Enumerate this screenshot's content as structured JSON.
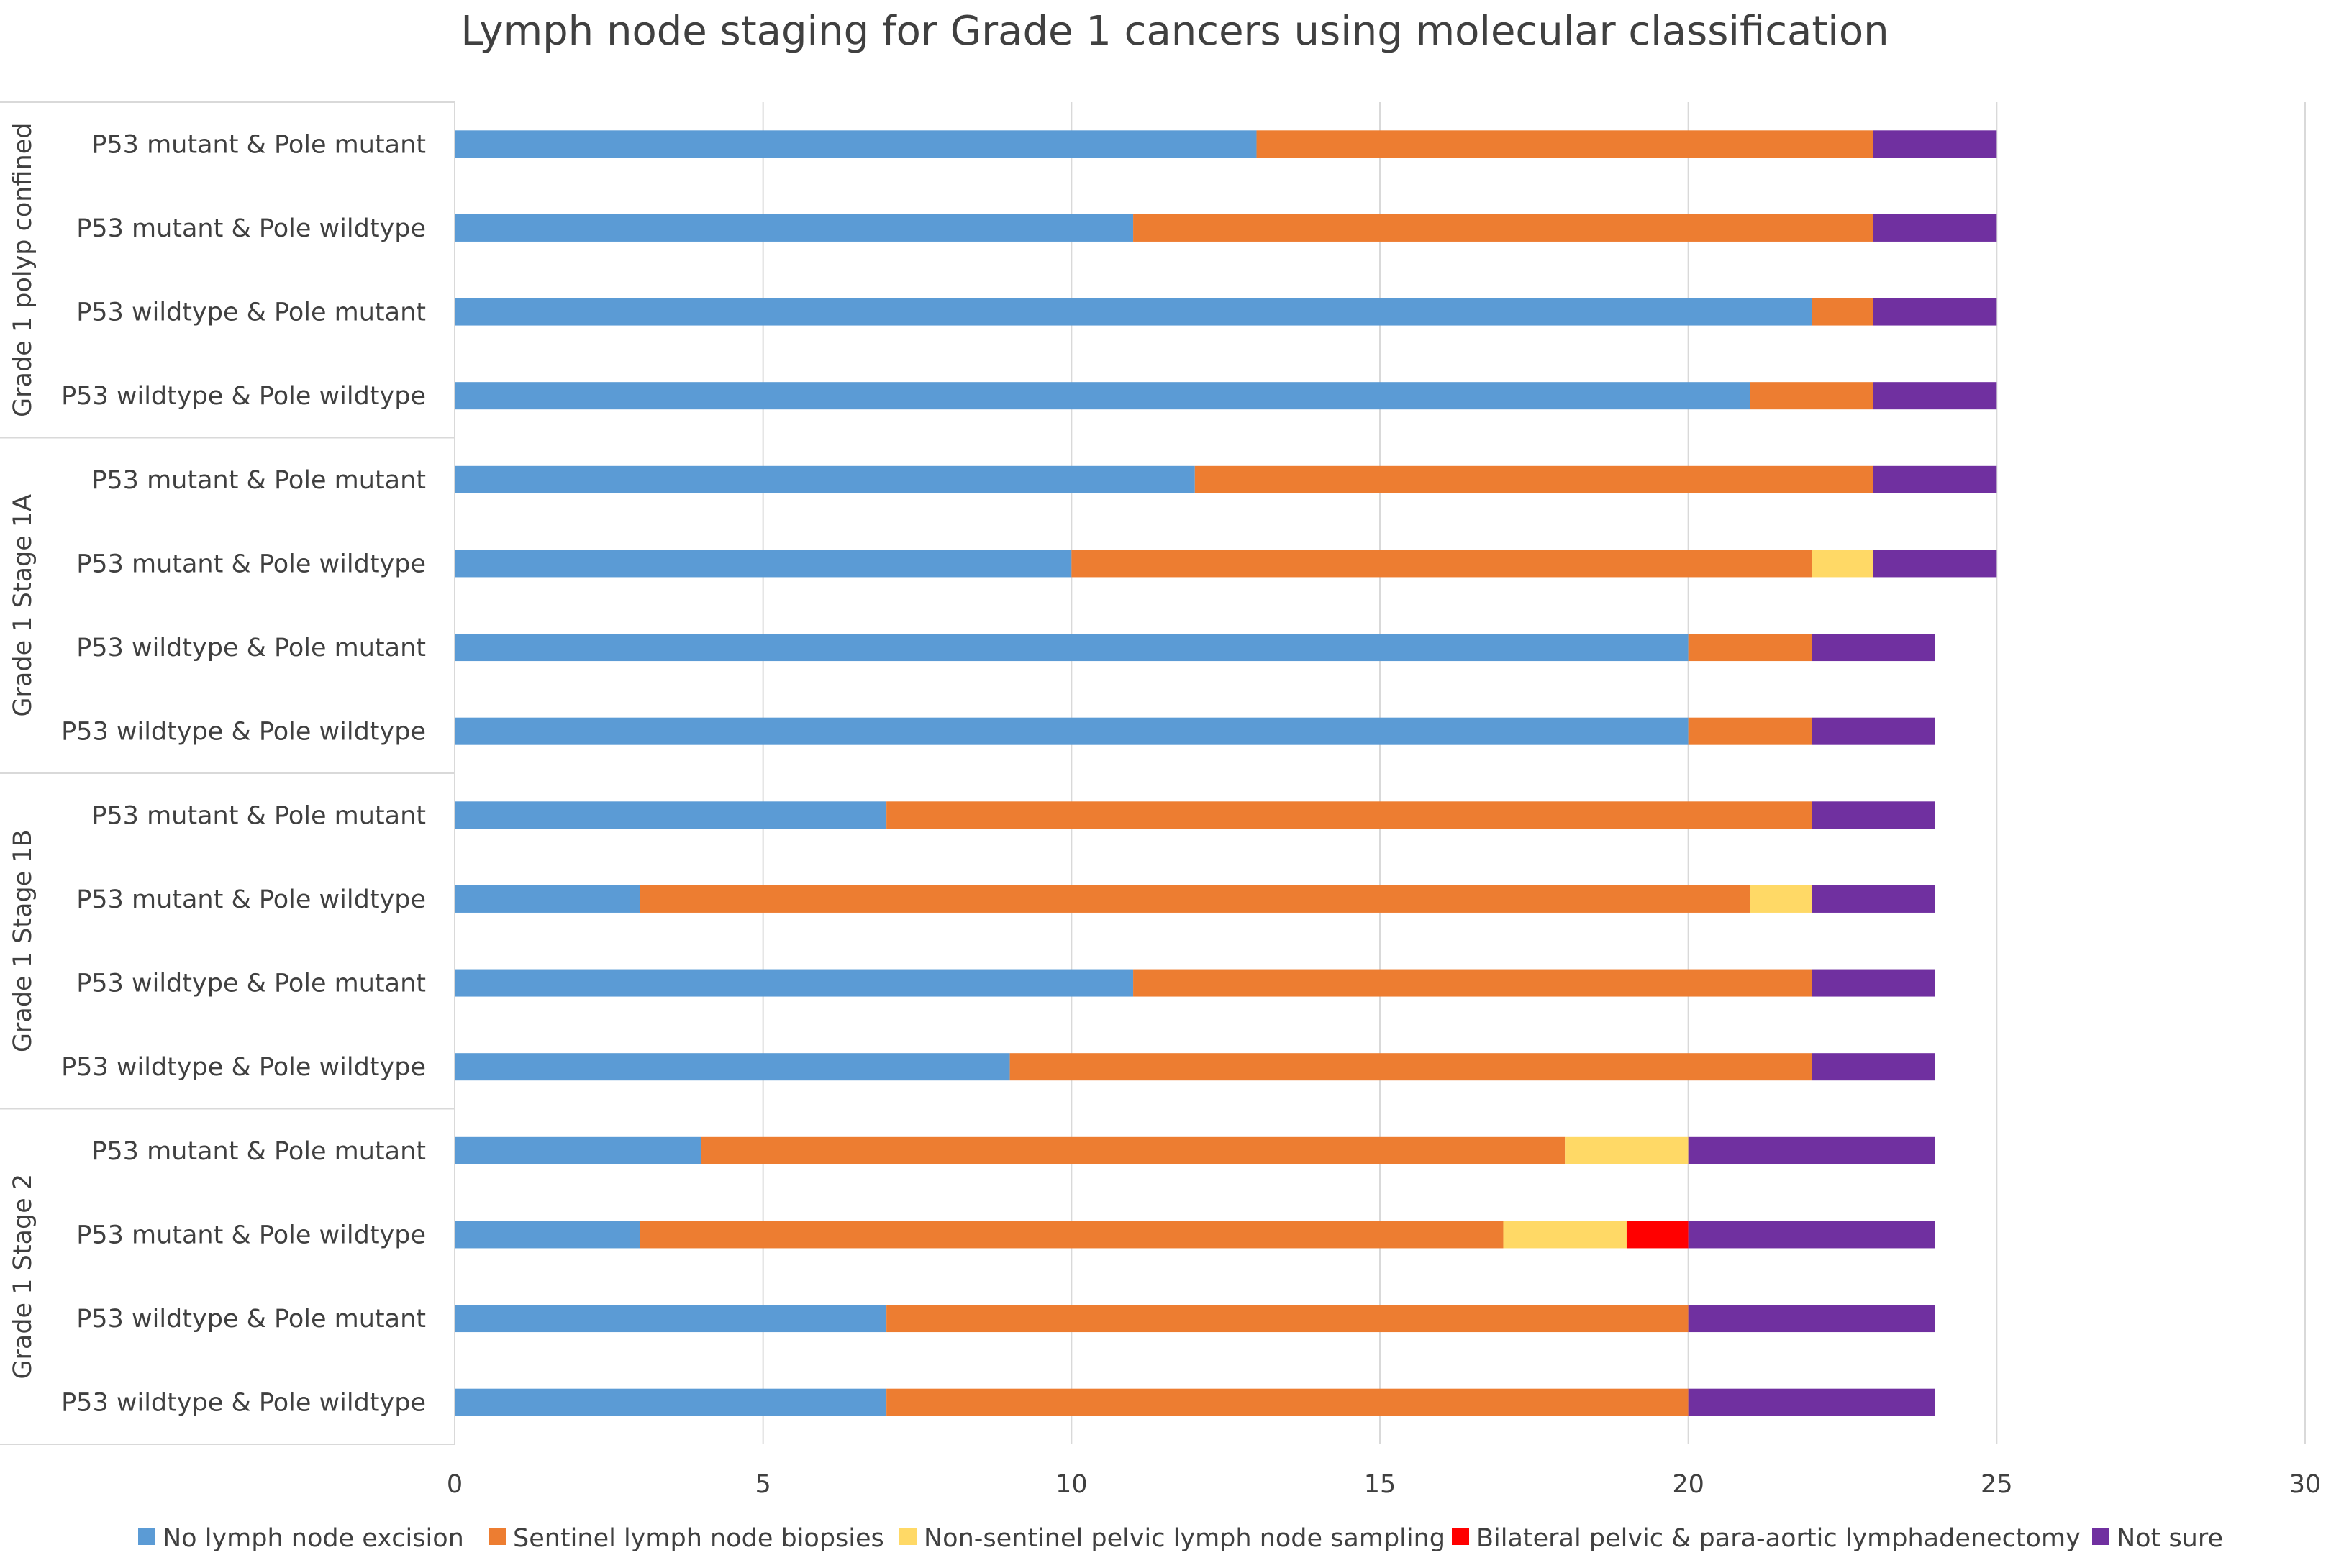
{
  "chart_data": {
    "type": "bar",
    "orientation": "horizontal",
    "stacked": true,
    "title": "Lymph node staging for Grade 1 cancers using molecular classification",
    "xlabel": "",
    "ylabel": "",
    "xlim": [
      0,
      30
    ],
    "xticks": [
      0,
      5,
      10,
      15,
      20,
      25,
      30
    ],
    "grid": "vertical",
    "legend_position": "bottom",
    "groups": [
      {
        "name": "Grade 1 polyp confined",
        "categories": [
          "P53 mutant & Pole mutant",
          "P53 mutant & Pole wildtype",
          "P53 wildtype & Pole mutant",
          "P53 wildtype & Pole wildtype"
        ]
      },
      {
        "name": "Grade 1 Stage 1A",
        "categories": [
          "P53 mutant & Pole mutant",
          "P53 mutant & Pole wildtype",
          "P53 wildtype & Pole mutant",
          "P53 wildtype & Pole wildtype"
        ]
      },
      {
        "name": "Grade 1 Stage 1B",
        "categories": [
          "P53 mutant & Pole mutant",
          "P53 mutant & Pole wildtype",
          "P53 wildtype & Pole mutant",
          "P53 wildtype & Pole wildtype"
        ]
      },
      {
        "name": "Grade 1 Stage 2",
        "categories": [
          "P53 mutant & Pole mutant",
          "P53 mutant & Pole wildtype",
          "P53 wildtype & Pole mutant",
          "P53 wildtype & Pole wildtype"
        ]
      }
    ],
    "series": [
      {
        "name": "No lymph node excision",
        "color": "#5b9bd5",
        "values": [
          13,
          11,
          22,
          21,
          12,
          10,
          20,
          20,
          7,
          3,
          11,
          9,
          4,
          3,
          7,
          7
        ]
      },
      {
        "name": "Sentinel lymph node biopsies",
        "color": "#ed7d31",
        "values": [
          10,
          12,
          1,
          2,
          11,
          12,
          2,
          2,
          15,
          18,
          11,
          13,
          14,
          14,
          13,
          13
        ]
      },
      {
        "name": "Non-sentinel pelvic lymph node sampling",
        "color": "#ffd966",
        "values": [
          0,
          0,
          0,
          0,
          0,
          1,
          0,
          0,
          0,
          1,
          0,
          0,
          2,
          2,
          0,
          0
        ]
      },
      {
        "name": "Bilateral pelvic & para-aortic lymphadenectomy",
        "color": "#ff0000",
        "values": [
          0,
          0,
          0,
          0,
          0,
          0,
          0,
          0,
          0,
          0,
          0,
          0,
          0,
          1,
          0,
          0
        ]
      },
      {
        "name": "Not sure",
        "color": "#7030a0",
        "values": [
          2,
          2,
          2,
          2,
          2,
          2,
          2,
          2,
          2,
          2,
          2,
          2,
          4,
          4,
          4,
          4
        ]
      }
    ]
  }
}
